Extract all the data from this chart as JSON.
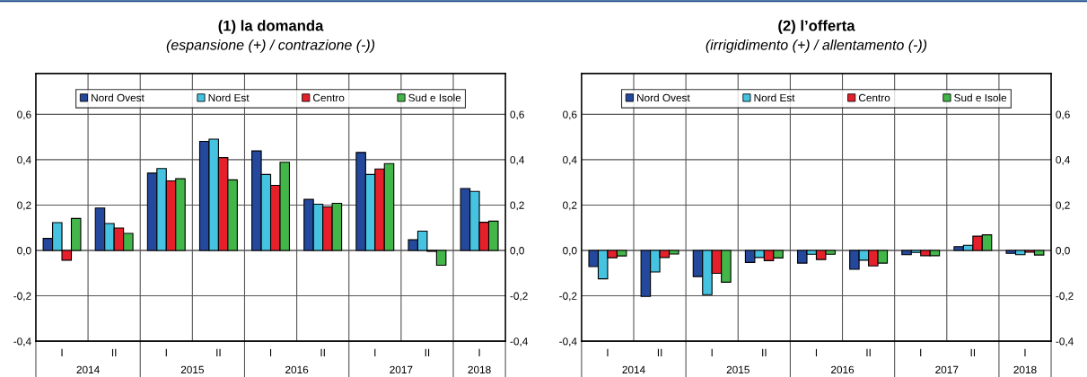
{
  "chart_data": [
    {
      "type": "bar",
      "title": "(1) la domanda",
      "subtitle": "(espansione (+) / contrazione (-))",
      "categories": [
        "I",
        "II",
        "I",
        "II",
        "I",
        "II",
        "I",
        "II",
        "I"
      ],
      "annotations": [
        "2014",
        "2015",
        "2016",
        "2017",
        "2018"
      ],
      "series": [
        {
          "name": "Nord Ovest",
          "color": "#24489c",
          "values": [
            0.053,
            0.187,
            0.341,
            0.481,
            0.439,
            0.225,
            0.432,
            0.047,
            0.273
          ]
        },
        {
          "name": "Nord Est",
          "color": "#46c3e0",
          "values": [
            0.123,
            0.119,
            0.361,
            0.491,
            0.335,
            0.204,
            0.335,
            0.085,
            0.26
          ]
        },
        {
          "name": "Centro",
          "color": "#e5202a",
          "values": [
            -0.043,
            0.099,
            0.307,
            0.409,
            0.287,
            0.192,
            0.359,
            -0.004,
            0.124
          ]
        },
        {
          "name": "Sud e Isole",
          "color": "#43b649",
          "values": [
            0.141,
            0.075,
            0.316,
            0.311,
            0.389,
            0.208,
            0.383,
            -0.065,
            0.129
          ]
        }
      ],
      "ylim": [
        -0.4,
        0.78
      ],
      "yticks": [
        {
          "value": -0.4,
          "label": "-0,4"
        },
        {
          "value": -0.2,
          "label": "-0,2"
        },
        {
          "value": 0,
          "label": "0,0"
        },
        {
          "value": 0.2,
          "label": "0,2"
        },
        {
          "value": 0.4,
          "label": "0,4"
        },
        {
          "value": 0.6,
          "label": "0,6"
        }
      ],
      "y2lim": [
        -0.4,
        0.78
      ],
      "y2ticks": [
        {
          "value": -0.4,
          "label": "-0,4"
        },
        {
          "value": -0.2,
          "label": "-0,2"
        },
        {
          "value": 0,
          "label": "0,0"
        },
        {
          "value": 0.2,
          "label": "0,2"
        },
        {
          "value": 0.4,
          "label": "0,4"
        },
        {
          "value": 0.6,
          "label": "0,6"
        }
      ],
      "grid": true,
      "legend": "top"
    },
    {
      "type": "bar",
      "title": "(2) l’offerta",
      "subtitle": "(irrigidimento (+) / allentamento (-))",
      "categories": [
        "I",
        "II",
        "I",
        "II",
        "I",
        "II",
        "I",
        "II",
        "I"
      ],
      "annotations": [
        "2014",
        "2015",
        "2016",
        "2017",
        "2018"
      ],
      "series": [
        {
          "name": "Nord Ovest",
          "color": "#24489c",
          "values": [
            -0.071,
            -0.203,
            -0.115,
            -0.053,
            -0.056,
            -0.083,
            -0.019,
            0.017,
            -0.013
          ]
        },
        {
          "name": "Nord Est",
          "color": "#46c3e0",
          "values": [
            -0.125,
            -0.095,
            -0.195,
            -0.031,
            -0.017,
            -0.043,
            -0.009,
            0.023,
            -0.019
          ]
        },
        {
          "name": "Centro",
          "color": "#e5202a",
          "values": [
            -0.032,
            -0.031,
            -0.101,
            -0.045,
            -0.04,
            -0.068,
            -0.023,
            0.063,
            -0.008
          ]
        },
        {
          "name": "Sud e Isole",
          "color": "#43b649",
          "values": [
            -0.024,
            -0.016,
            -0.14,
            -0.033,
            -0.017,
            -0.056,
            -0.023,
            0.069,
            -0.02
          ]
        }
      ],
      "ylim": [
        -0.4,
        0.78
      ],
      "yticks": [
        {
          "value": -0.4,
          "label": "-0,4"
        },
        {
          "value": -0.2,
          "label": "-0,2"
        },
        {
          "value": 0,
          "label": "0,0"
        },
        {
          "value": 0.2,
          "label": "0,2"
        },
        {
          "value": 0.4,
          "label": "0,4"
        },
        {
          "value": 0.6,
          "label": "0,6"
        }
      ],
      "y2lim": [
        -0.4,
        0.78
      ],
      "y2ticks": [
        {
          "value": -0.4,
          "label": "-0,4"
        },
        {
          "value": -0.2,
          "label": "-0,2"
        },
        {
          "value": 0,
          "label": "0,0"
        },
        {
          "value": 0.2,
          "label": "0,2"
        },
        {
          "value": 0.4,
          "label": "0,4"
        },
        {
          "value": 0.6,
          "label": "0,6"
        }
      ],
      "grid": true,
      "legend": "top"
    }
  ]
}
